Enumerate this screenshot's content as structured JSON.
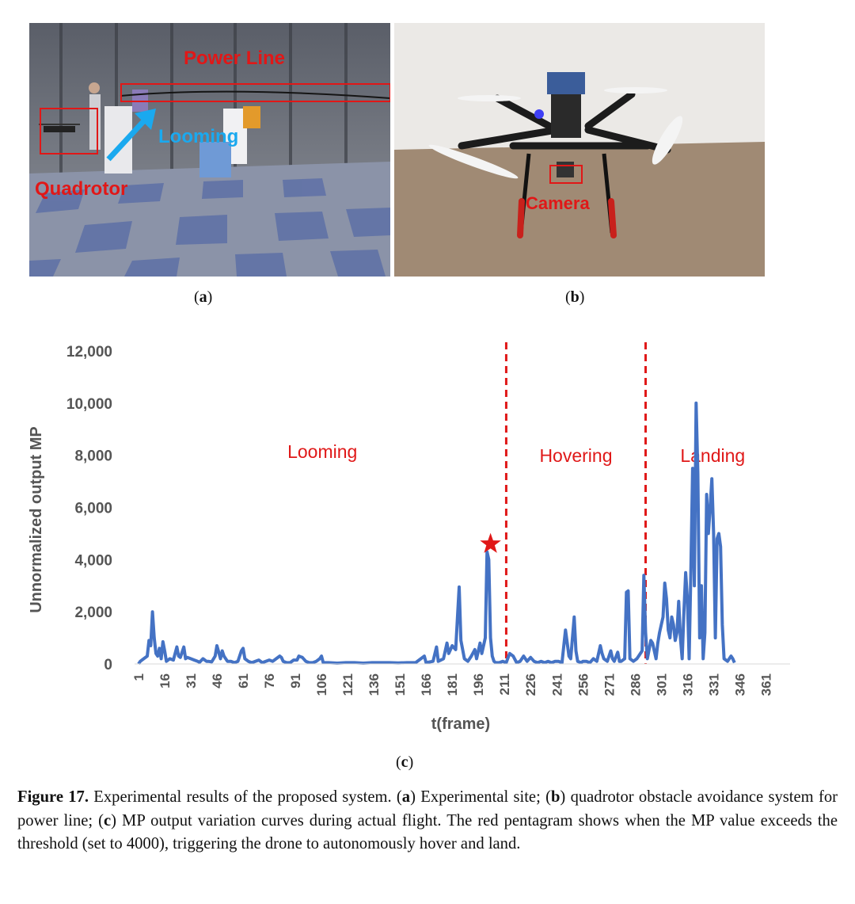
{
  "panel_a": {
    "labels": {
      "power_line": "Power Line",
      "looming": "Looming",
      "quadrotor": "Quadrotor"
    },
    "caption": "(a)",
    "caption_letter": "a"
  },
  "panel_b": {
    "labels": {
      "camera": "Camera"
    },
    "caption": "(b)",
    "caption_letter": "b"
  },
  "panel_c": {
    "caption_letter": "c",
    "colors": {
      "series": "#4472c4",
      "phase": "#e01818"
    }
  },
  "chart_data": {
    "type": "line",
    "xlabel": "t(frame)",
    "ylabel": "Unnormalized output MP",
    "ylim": [
      0,
      12000
    ],
    "y_ticks": [
      "0",
      "2,000",
      "4,000",
      "6,000",
      "8,000",
      "10,000",
      "12,000"
    ],
    "x_ticks": [
      "1",
      "16",
      "31",
      "46",
      "61",
      "76",
      "91",
      "106",
      "121",
      "136",
      "151",
      "166",
      "181",
      "196",
      "211",
      "226",
      "241",
      "256",
      "271",
      "286",
      "301",
      "316",
      "331",
      "346",
      "361"
    ],
    "grid": false,
    "phases": [
      {
        "label": "Looming",
        "start": 1,
        "end": 212
      },
      {
        "label": "Hovering",
        "start": 212,
        "end": 292
      },
      {
        "label": "Landing",
        "start": 292,
        "end": 369
      }
    ],
    "phase_boundaries": [
      212,
      292
    ],
    "threshold_marker": {
      "x": 203,
      "y": 4600,
      "note": "threshold exceeded (4000)"
    },
    "series": [
      {
        "points": [
          [
            1,
            0
          ],
          [
            2,
            100
          ],
          [
            4,
            200
          ],
          [
            6,
            300
          ],
          [
            7,
            900
          ],
          [
            8,
            700
          ],
          [
            9,
            2000
          ],
          [
            10,
            1000
          ],
          [
            11,
            400
          ],
          [
            12,
            300
          ],
          [
            13,
            600
          ],
          [
            14,
            200
          ],
          [
            15,
            850
          ],
          [
            16,
            500
          ],
          [
            17,
            100
          ],
          [
            19,
            200
          ],
          [
            21,
            150
          ],
          [
            23,
            650
          ],
          [
            24,
            300
          ],
          [
            25,
            250
          ],
          [
            27,
            650
          ],
          [
            28,
            200
          ],
          [
            29,
            250
          ],
          [
            31,
            200
          ],
          [
            33,
            150
          ],
          [
            35,
            100
          ],
          [
            36,
            60
          ],
          [
            38,
            200
          ],
          [
            40,
            100
          ],
          [
            41,
            100
          ],
          [
            43,
            80
          ],
          [
            45,
            300
          ],
          [
            46,
            700
          ],
          [
            47,
            450
          ],
          [
            48,
            200
          ],
          [
            49,
            500
          ],
          [
            50,
            300
          ],
          [
            52,
            100
          ],
          [
            54,
            100
          ],
          [
            56,
            50
          ],
          [
            58,
            100
          ],
          [
            60,
            500
          ],
          [
            61,
            600
          ],
          [
            62,
            200
          ],
          [
            64,
            100
          ],
          [
            66,
            50
          ],
          [
            68,
            100
          ],
          [
            70,
            150
          ],
          [
            72,
            50
          ],
          [
            74,
            100
          ],
          [
            76,
            150
          ],
          [
            78,
            100
          ],
          [
            80,
            200
          ],
          [
            82,
            300
          ],
          [
            83,
            250
          ],
          [
            84,
            100
          ],
          [
            86,
            50
          ],
          [
            88,
            50
          ],
          [
            90,
            150
          ],
          [
            92,
            150
          ],
          [
            93,
            300
          ],
          [
            95,
            250
          ],
          [
            97,
            100
          ],
          [
            99,
            50
          ],
          [
            101,
            50
          ],
          [
            103,
            100
          ],
          [
            105,
            200
          ],
          [
            106,
            300
          ],
          [
            107,
            50
          ],
          [
            110,
            50
          ],
          [
            115,
            30
          ],
          [
            120,
            50
          ],
          [
            125,
            50
          ],
          [
            130,
            30
          ],
          [
            135,
            50
          ],
          [
            140,
            50
          ],
          [
            145,
            50
          ],
          [
            150,
            40
          ],
          [
            155,
            50
          ],
          [
            160,
            50
          ],
          [
            165,
            300
          ],
          [
            166,
            50
          ],
          [
            170,
            100
          ],
          [
            172,
            650
          ],
          [
            173,
            100
          ],
          [
            176,
            200
          ],
          [
            178,
            800
          ],
          [
            179,
            400
          ],
          [
            181,
            700
          ],
          [
            183,
            550
          ],
          [
            185,
            2950
          ],
          [
            186,
            900
          ],
          [
            188,
            200
          ],
          [
            190,
            100
          ],
          [
            192,
            300
          ],
          [
            194,
            550
          ],
          [
            195,
            200
          ],
          [
            197,
            800
          ],
          [
            198,
            400
          ],
          [
            200,
            1000
          ],
          [
            201,
            4300
          ],
          [
            202,
            4000
          ],
          [
            203,
            1000
          ],
          [
            204,
            300
          ],
          [
            205,
            100
          ],
          [
            206,
            50
          ],
          [
            208,
            50
          ],
          [
            210,
            100
          ],
          [
            212,
            50
          ],
          [
            214,
            400
          ],
          [
            216,
            300
          ],
          [
            218,
            50
          ],
          [
            220,
            100
          ],
          [
            222,
            300
          ],
          [
            224,
            100
          ],
          [
            226,
            250
          ],
          [
            228,
            100
          ],
          [
            230,
            50
          ],
          [
            232,
            100
          ],
          [
            234,
            50
          ],
          [
            236,
            100
          ],
          [
            238,
            50
          ],
          [
            240,
            100
          ],
          [
            242,
            100
          ],
          [
            244,
            50
          ],
          [
            246,
            1300
          ],
          [
            247,
            800
          ],
          [
            248,
            300
          ],
          [
            249,
            200
          ],
          [
            251,
            1800
          ],
          [
            252,
            500
          ],
          [
            253,
            100
          ],
          [
            255,
            50
          ],
          [
            256,
            100
          ],
          [
            258,
            100
          ],
          [
            260,
            50
          ],
          [
            262,
            200
          ],
          [
            264,
            100
          ],
          [
            266,
            700
          ],
          [
            267,
            400
          ],
          [
            268,
            200
          ],
          [
            270,
            100
          ],
          [
            272,
            500
          ],
          [
            273,
            200
          ],
          [
            274,
            100
          ],
          [
            276,
            450
          ],
          [
            277,
            100
          ],
          [
            278,
            100
          ],
          [
            280,
            200
          ],
          [
            281,
            2750
          ],
          [
            282,
            2800
          ],
          [
            283,
            200
          ],
          [
            285,
            100
          ],
          [
            287,
            200
          ],
          [
            288,
            300
          ],
          [
            290,
            500
          ],
          [
            291,
            3400
          ],
          [
            292,
            1200
          ],
          [
            293,
            200
          ],
          [
            295,
            900
          ],
          [
            296,
            800
          ],
          [
            297,
            500
          ],
          [
            298,
            200
          ],
          [
            299,
            800
          ],
          [
            300,
            1200
          ],
          [
            301,
            1500
          ],
          [
            302,
            1800
          ],
          [
            303,
            3100
          ],
          [
            304,
            2500
          ],
          [
            305,
            1300
          ],
          [
            306,
            1000
          ],
          [
            307,
            1800
          ],
          [
            308,
            1500
          ],
          [
            309,
            900
          ],
          [
            310,
            1200
          ],
          [
            311,
            2400
          ],
          [
            312,
            1000
          ],
          [
            313,
            200
          ],
          [
            314,
            2000
          ],
          [
            315,
            3500
          ],
          [
            316,
            2500
          ],
          [
            317,
            200
          ],
          [
            318,
            3600
          ],
          [
            319,
            7500
          ],
          [
            320,
            3000
          ],
          [
            321,
            10000
          ],
          [
            322,
            7300
          ],
          [
            323,
            1000
          ],
          [
            324,
            3000
          ],
          [
            325,
            200
          ],
          [
            326,
            1200
          ],
          [
            327,
            6500
          ],
          [
            328,
            5000
          ],
          [
            329,
            6000
          ],
          [
            330,
            7100
          ],
          [
            331,
            5000
          ],
          [
            332,
            1000
          ],
          [
            333,
            4800
          ],
          [
            334,
            5000
          ],
          [
            335,
            4500
          ],
          [
            336,
            1500
          ],
          [
            337,
            200
          ],
          [
            339,
            100
          ],
          [
            341,
            300
          ],
          [
            342,
            200
          ],
          [
            343,
            50
          ]
        ]
      }
    ]
  },
  "caption": {
    "label": "Figure 17.",
    "text_1": " Experimental results of the proposed system. (",
    "a": "a",
    "text_2": ") Experimental site; (",
    "b": "b",
    "text_3": ") quadrotor obstacle avoidance system for power line; (",
    "c": "c",
    "text_4": ") MP output variation curves during actual flight. The red pentagram shows when the MP value exceeds the threshold (set to 4000), triggering the drone to autonomously hover and land."
  }
}
